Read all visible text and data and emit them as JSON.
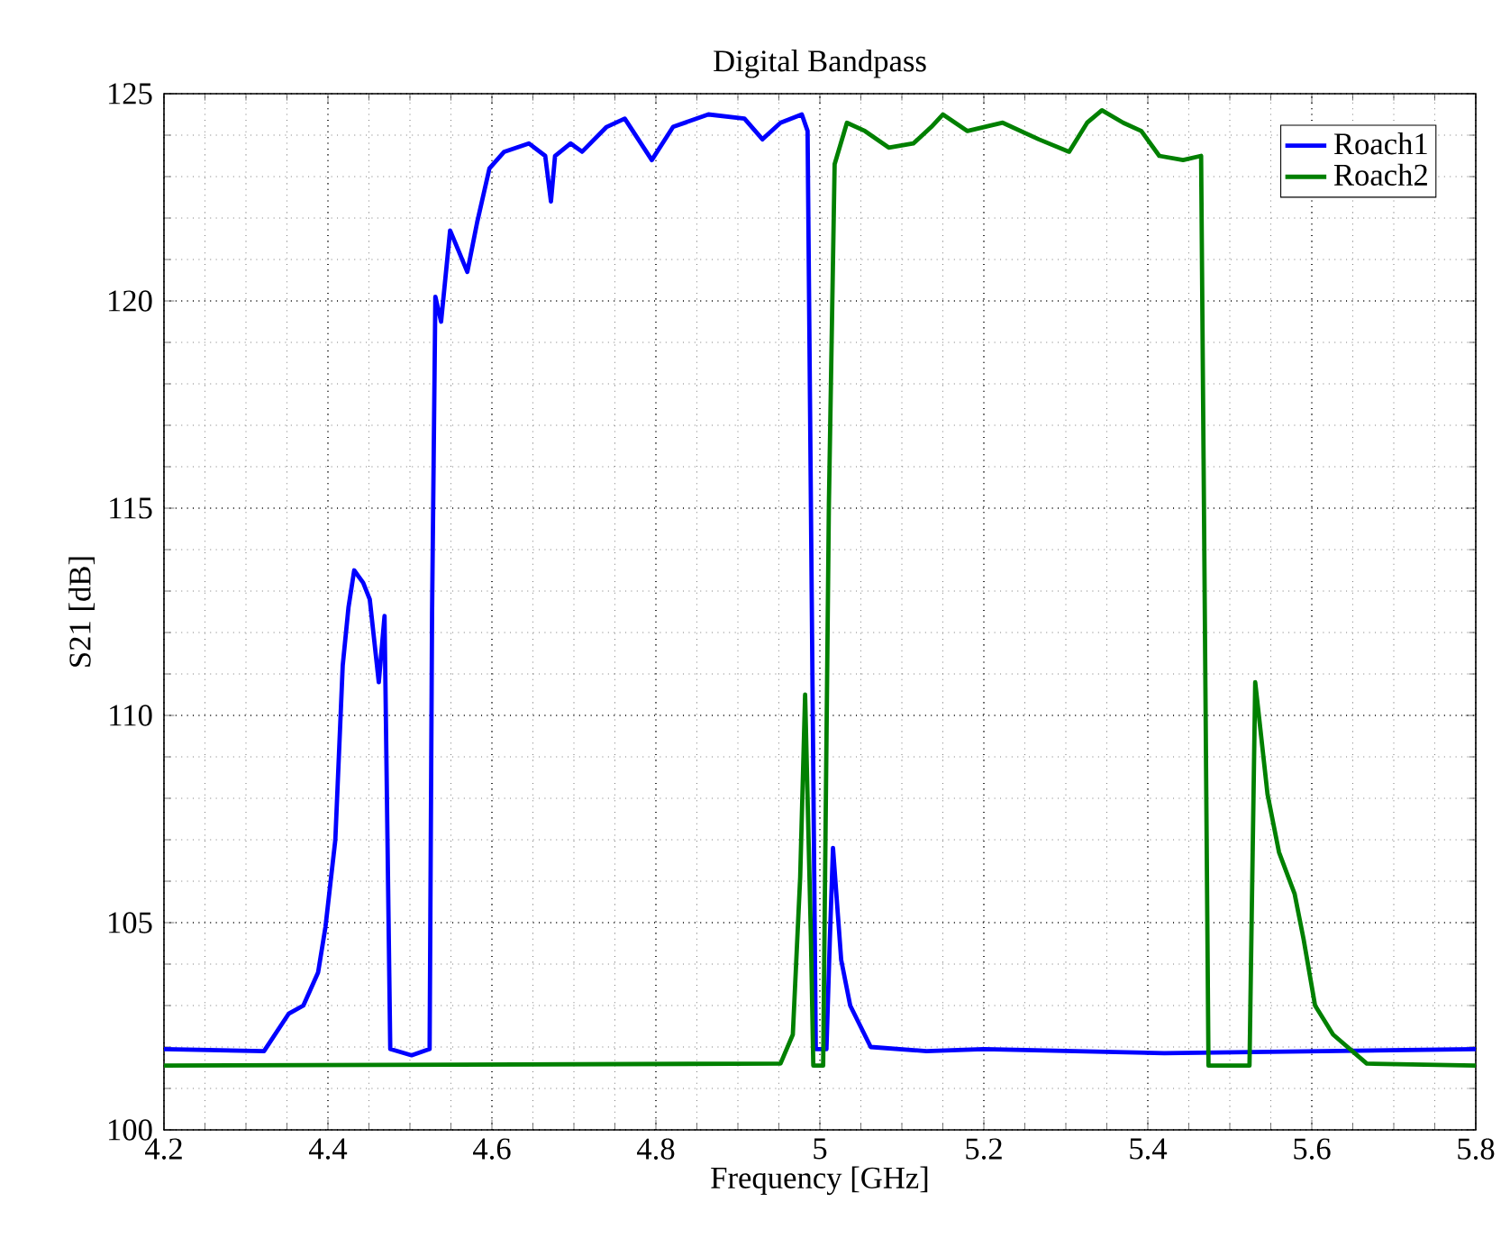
{
  "chart_data": {
    "type": "line",
    "title": "Digital Bandpass",
    "xlabel": "Frequency [GHz]",
    "ylabel": "S21 [dB]",
    "xlim": [
      4.2,
      5.8
    ],
    "ylim": [
      100,
      125
    ],
    "xticks": [
      4.2,
      4.4,
      4.6,
      4.8,
      5,
      5.2,
      5.4,
      5.6,
      5.8
    ],
    "yticks": [
      100,
      105,
      110,
      115,
      120,
      125
    ],
    "grid": true,
    "legend": "top right",
    "series": [
      {
        "name": "Roach1",
        "color": "#0000ff",
        "x": [
          4.2,
          4.322,
          4.352,
          4.37,
          4.388,
          4.397,
          4.409,
          4.418,
          4.425,
          4.432,
          4.443,
          4.451,
          4.462,
          4.469,
          4.476,
          4.502,
          4.524,
          4.527,
          4.531,
          4.538,
          4.549,
          4.57,
          4.582,
          4.597,
          4.615,
          4.645,
          4.665,
          4.672,
          4.677,
          4.696,
          4.71,
          4.74,
          4.762,
          4.795,
          4.821,
          4.864,
          4.908,
          4.93,
          4.952,
          4.978,
          4.985,
          4.99,
          4.995,
          5.008,
          5.012,
          5.016,
          5.026,
          5.037,
          5.062,
          5.13,
          5.2,
          5.42,
          5.8
        ],
        "values": [
          101.95,
          101.9,
          102.8,
          103.0,
          103.8,
          104.9,
          107.0,
          111.2,
          112.6,
          113.5,
          113.2,
          112.8,
          110.8,
          112.4,
          101.95,
          101.8,
          101.95,
          112.5,
          120.1,
          119.5,
          121.7,
          120.7,
          121.9,
          123.2,
          123.6,
          123.8,
          123.5,
          122.4,
          123.5,
          123.8,
          123.6,
          124.2,
          124.4,
          123.4,
          124.2,
          124.5,
          124.4,
          123.9,
          124.3,
          124.5,
          124.1,
          113.0,
          101.95,
          101.95,
          104.5,
          106.8,
          104.1,
          103.0,
          102.0,
          101.9,
          101.95,
          101.85,
          101.95
        ]
      },
      {
        "name": "Roach2",
        "color": "#008000",
        "x": [
          4.2,
          4.952,
          4.967,
          4.976,
          4.982,
          4.989,
          4.992,
          5.004,
          5.011,
          5.018,
          5.033,
          5.055,
          5.084,
          5.114,
          5.136,
          5.15,
          5.18,
          5.223,
          5.267,
          5.304,
          5.326,
          5.344,
          5.37,
          5.392,
          5.414,
          5.443,
          5.465,
          5.474,
          5.524,
          5.531,
          5.546,
          5.56,
          5.579,
          5.59,
          5.604,
          5.626,
          5.667,
          5.8
        ],
        "values": [
          101.55,
          101.6,
          102.3,
          106.1,
          110.5,
          104.7,
          101.55,
          101.55,
          115.1,
          123.3,
          124.3,
          124.1,
          123.7,
          123.8,
          124.2,
          124.5,
          124.1,
          124.3,
          123.9,
          123.6,
          124.3,
          124.6,
          124.3,
          124.1,
          123.5,
          123.4,
          123.5,
          101.55,
          101.55,
          110.8,
          108.1,
          106.7,
          105.7,
          104.6,
          103.0,
          102.3,
          101.6,
          101.55
        ]
      }
    ]
  }
}
